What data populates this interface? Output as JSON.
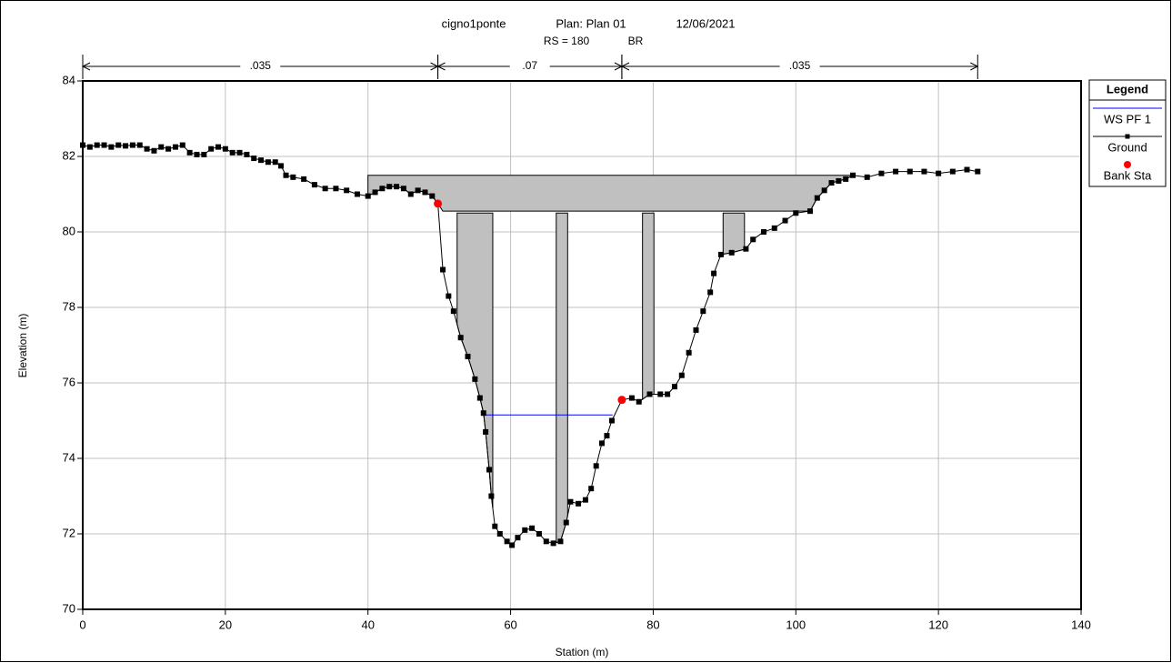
{
  "chart_data": {
    "type": "line",
    "title": "cigno1ponte",
    "plan": "Plan: Plan 01",
    "date": "12/06/2021",
    "section": "RS = 180",
    "structure": "BR",
    "xlabel": "Station (m)",
    "ylabel": "Elevation (m)",
    "xlim": [
      0,
      140
    ],
    "ylim": [
      70,
      84
    ],
    "xticks": [
      0,
      20,
      40,
      60,
      80,
      100,
      120,
      140
    ],
    "yticks": [
      70,
      72,
      74,
      76,
      78,
      80,
      82,
      84
    ],
    "grid": true,
    "legend": {
      "title": "Legend",
      "position": "right"
    },
    "n_values": [
      {
        "label": ".035",
        "x": [
          0,
          49.8
        ]
      },
      {
        "label": ".07",
        "x": [
          49.8,
          75.6
        ]
      },
      {
        "label": ".035",
        "x": [
          75.6,
          125.5
        ]
      }
    ],
    "bridge": {
      "color": "#c0c0c0",
      "deck": {
        "x": [
          40,
          108
        ],
        "high_chord": 81.5,
        "low_chord": 80.55
      },
      "piers": [
        {
          "x": [
            52.5,
            57.5
          ],
          "top": 80.5
        },
        {
          "x": [
            66.4,
            68.0
          ],
          "top": 80.5
        },
        {
          "x": [
            78.5,
            80.1
          ],
          "top": 80.5
        },
        {
          "x": [
            89.8,
            92.8
          ],
          "top": 80.5
        }
      ]
    },
    "series": [
      {
        "name": "WS PF 1",
        "color": "#0000ff",
        "x": [
          56.1,
          74.3
        ],
        "values": [
          75.15,
          75.15
        ]
      },
      {
        "name": "Ground",
        "color": "#000000",
        "marker": "square",
        "x": [
          0,
          1,
          2,
          3,
          4,
          5,
          6,
          7,
          8,
          9,
          10,
          11,
          12,
          13,
          14,
          15,
          16,
          17,
          18,
          19,
          20,
          21,
          22,
          23,
          24,
          25,
          26,
          27,
          27.8,
          28.5,
          29.5,
          31,
          32.5,
          34,
          35.5,
          37,
          38.5,
          40,
          41,
          42,
          43,
          44,
          45,
          46,
          47,
          48,
          49,
          49.8,
          50.5,
          51.3,
          52,
          53,
          54,
          55,
          55.7,
          56.2,
          56.5,
          57,
          57.3,
          57.8,
          58.5,
          59.5,
          60.2,
          61,
          62,
          63,
          64,
          65,
          66,
          67,
          67.8,
          68.4,
          69.5,
          70.5,
          71.3,
          72,
          72.8,
          73.5,
          74.2,
          75.6,
          77,
          78,
          79.5,
          81,
          82,
          83,
          84,
          85,
          86,
          87,
          88,
          88.5,
          89.5,
          91,
          93,
          94,
          95.5,
          97,
          98.5,
          100,
          102,
          103,
          104,
          105,
          106,
          107,
          108,
          110,
          112,
          114,
          116,
          118,
          120,
          122,
          124,
          125.5
        ],
        "values": [
          82.3,
          82.25,
          82.3,
          82.3,
          82.25,
          82.3,
          82.28,
          82.3,
          82.3,
          82.2,
          82.15,
          82.25,
          82.2,
          82.25,
          82.3,
          82.1,
          82.05,
          82.05,
          82.2,
          82.25,
          82.2,
          82.1,
          82.1,
          82.05,
          81.95,
          81.9,
          81.85,
          81.85,
          81.75,
          81.5,
          81.45,
          81.4,
          81.25,
          81.15,
          81.15,
          81.1,
          81.0,
          80.95,
          81.05,
          81.15,
          81.2,
          81.2,
          81.15,
          81.0,
          81.1,
          81.05,
          80.95,
          80.75,
          79.0,
          78.3,
          77.9,
          77.2,
          76.7,
          76.1,
          75.6,
          75.2,
          74.7,
          73.7,
          73.0,
          72.2,
          72.0,
          71.8,
          71.7,
          71.9,
          72.1,
          72.15,
          72.0,
          71.8,
          71.75,
          71.8,
          72.3,
          72.85,
          72.8,
          72.9,
          73.2,
          73.8,
          74.4,
          74.6,
          75.0,
          75.55,
          75.6,
          75.5,
          75.7,
          75.7,
          75.7,
          75.9,
          76.2,
          76.8,
          77.4,
          77.9,
          78.4,
          78.9,
          79.4,
          79.45,
          79.55,
          79.8,
          80.0,
          80.1,
          80.3,
          80.5,
          80.55,
          80.9,
          81.1,
          81.3,
          81.35,
          81.4,
          81.5,
          81.45,
          81.55,
          81.6,
          81.6,
          81.6,
          81.55,
          81.6,
          81.65,
          81.6
        ]
      },
      {
        "name": "Bank Sta",
        "color": "#ff0000",
        "marker": "circle",
        "x": [
          49.8,
          75.6
        ],
        "values": [
          80.75,
          75.55
        ]
      }
    ]
  }
}
